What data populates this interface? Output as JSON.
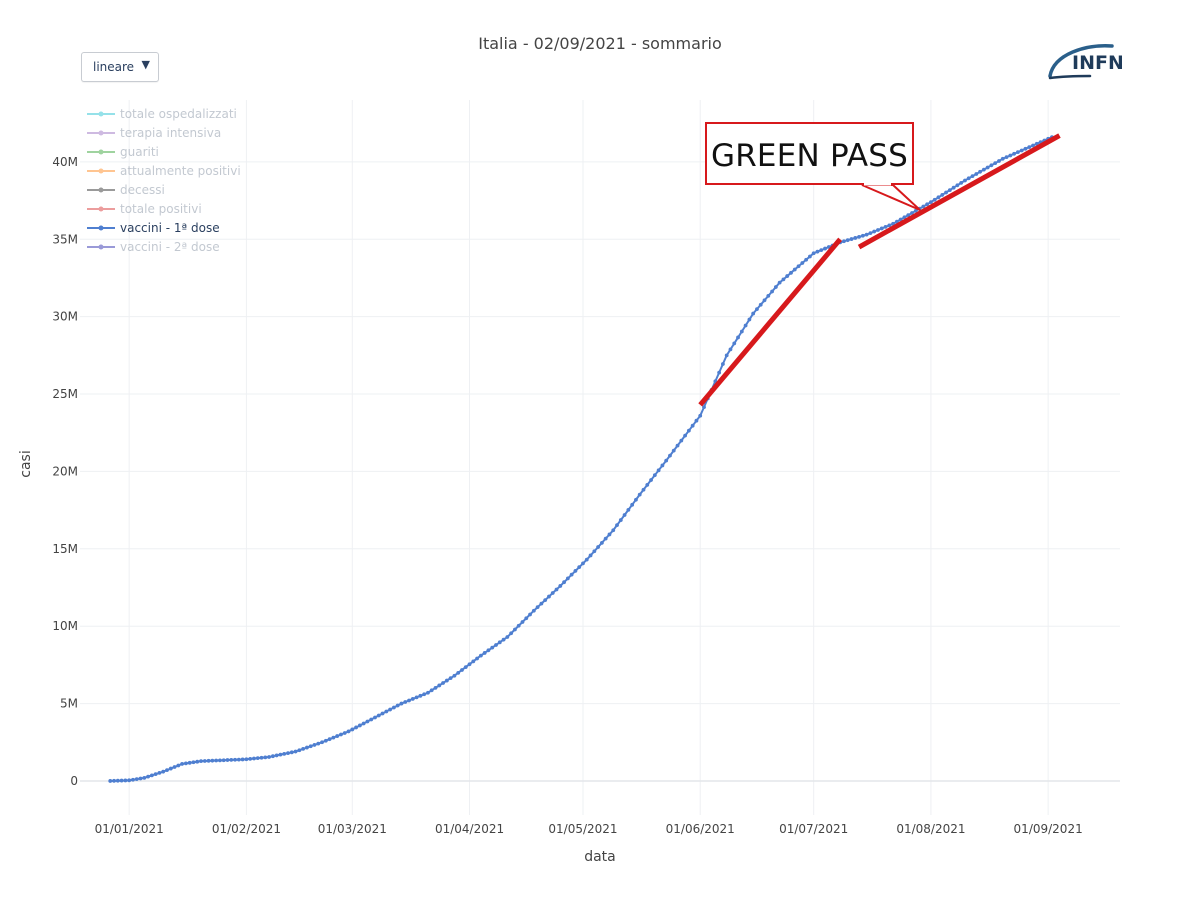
{
  "header": {
    "title": "Italia - 02/09/2021 - sommario",
    "scale_selector": {
      "selected": "lineare",
      "arrow": "▼"
    },
    "logo_text": "INFN"
  },
  "annotation": {
    "text": "GREEN PASS",
    "color": "#d7191c"
  },
  "chart_data": {
    "type": "line",
    "title": "Italia - 02/09/2021 - sommario",
    "xlabel": "data",
    "ylabel": "casi",
    "x_ticks": [
      "01/01/2021",
      "01/02/2021",
      "01/03/2021",
      "01/04/2021",
      "01/05/2021",
      "01/06/2021",
      "01/07/2021",
      "01/08/2021",
      "01/09/2021"
    ],
    "y_ticks": [
      "0",
      "5M",
      "10M",
      "15M",
      "20M",
      "25M",
      "30M",
      "35M",
      "40M"
    ],
    "ylim": [
      -2200000,
      44000000
    ],
    "xlim": [
      "2020-12-19",
      "2021-09-20"
    ],
    "grid": true,
    "legend_position": "top-left",
    "legend": [
      {
        "name": "totale ospedalizzati",
        "color": "#17becf",
        "visible": false
      },
      {
        "name": "terapia intensiva",
        "color": "#9467bd",
        "visible": false
      },
      {
        "name": "guariti",
        "color": "#2ca02c",
        "visible": false
      },
      {
        "name": "attualmente positivi",
        "color": "#ff7f0e",
        "visible": false
      },
      {
        "name": "decessi",
        "color": "#222222",
        "visible": false
      },
      {
        "name": "totale positivi",
        "color": "#d62728",
        "visible": false
      },
      {
        "name": "vaccini - 1ª dose",
        "color": "#4f7fd0",
        "visible": true
      },
      {
        "name": "vaccini - 2ª dose",
        "color": "#2222aa",
        "visible": false
      }
    ],
    "series": [
      {
        "name": "vaccini - 1ª dose",
        "color": "#4f7fd0",
        "x": [
          "2020-12-27",
          "2021-01-01",
          "2021-01-05",
          "2021-01-10",
          "2021-01-15",
          "2021-01-20",
          "2021-01-25",
          "2021-02-01",
          "2021-02-07",
          "2021-02-14",
          "2021-02-21",
          "2021-02-28",
          "2021-03-07",
          "2021-03-14",
          "2021-03-21",
          "2021-03-28",
          "2021-04-04",
          "2021-04-11",
          "2021-04-18",
          "2021-04-25",
          "2021-05-02",
          "2021-05-09",
          "2021-05-16",
          "2021-05-23",
          "2021-06-01",
          "2021-06-08",
          "2021-06-15",
          "2021-06-22",
          "2021-07-01",
          "2021-07-08",
          "2021-07-15",
          "2021-07-22",
          "2021-08-01",
          "2021-08-10",
          "2021-08-20",
          "2021-09-02"
        ],
        "values": [
          0,
          40000,
          200000,
          600000,
          1100000,
          1280000,
          1330000,
          1400000,
          1550000,
          1900000,
          2500000,
          3200000,
          4100000,
          5000000,
          5700000,
          6800000,
          8100000,
          9300000,
          11000000,
          12600000,
          14300000,
          16200000,
          18500000,
          20700000,
          23600000,
          27500000,
          30200000,
          32200000,
          34100000,
          34800000,
          35300000,
          36000000,
          37400000,
          38800000,
          40200000,
          41600000
        ]
      }
    ],
    "overlay_lines": [
      {
        "x": [
          "2021-06-01",
          "2021-07-08"
        ],
        "y": [
          24300000,
          35000000
        ],
        "color": "#d7191c"
      },
      {
        "x": [
          "2021-07-13",
          "2021-09-04"
        ],
        "y": [
          34500000,
          41700000
        ],
        "color": "#d7191c"
      }
    ]
  }
}
